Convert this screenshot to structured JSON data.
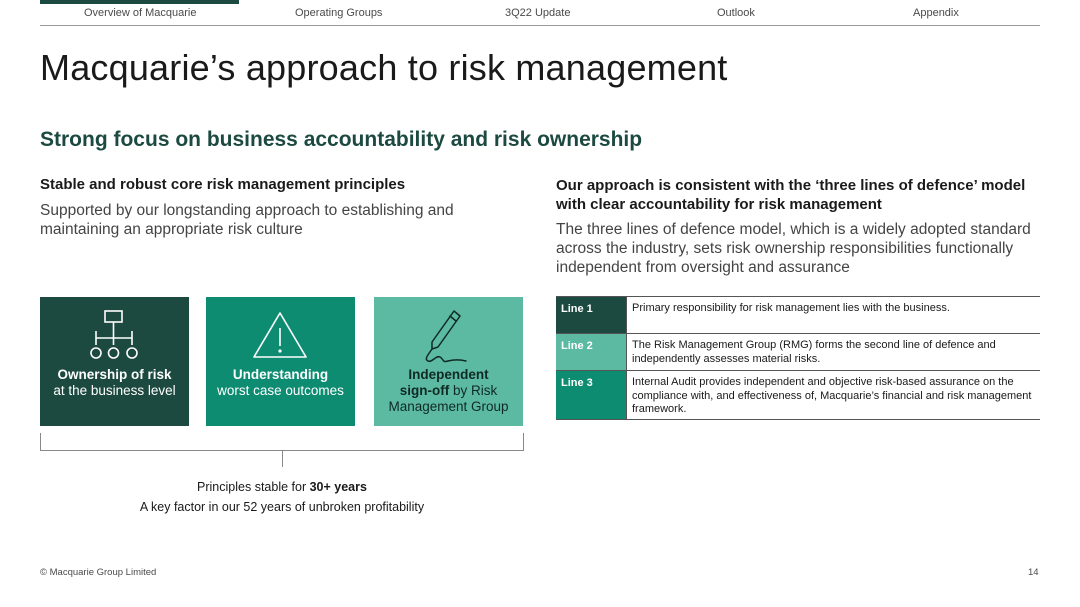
{
  "nav": {
    "items": [
      "Overview of Macquarie",
      "Operating Groups",
      "3Q22 Update",
      "Outlook",
      "Appendix"
    ],
    "active_index": 0
  },
  "title": "Macquarie’s approach to risk management",
  "subtitle": "Strong focus on business accountability and risk ownership",
  "left": {
    "heading": "Stable and robust core risk management principles",
    "body": "Supported by our longstanding approach to establishing and maintaining an appropriate risk culture"
  },
  "right": {
    "heading": "Our approach is consistent with the ‘three lines of defence’ model with clear accountability for risk management",
    "body": "The three lines of defence model, which is a widely adopted standard across the industry, sets risk ownership responsibilities functionally independent from oversight and assurance"
  },
  "principles": [
    {
      "icon": "org-chart-icon",
      "bold": "Ownership of risk",
      "rest": "at the business level",
      "color": "#1d4a40"
    },
    {
      "icon": "warning-triangle-icon",
      "bold": "Understanding",
      "rest": "worst case outcomes",
      "color": "#0e8c72"
    },
    {
      "icon": "pen-signature-icon",
      "bold_line1": "Independent",
      "bold_line2": "sign-off",
      "rest_line2": " by Risk",
      "rest_line3": "Management Group",
      "color": "#5cbaa3"
    }
  ],
  "summary": {
    "line1_prefix": "Principles stable for ",
    "line1_bold": "30+ years",
    "line2": "A key factor in our 52 years of unbroken profitability"
  },
  "lines_of_defence": [
    {
      "label": "Line 1",
      "text": "Primary responsibility for risk management lies with the business.",
      "color": "#1d4a40"
    },
    {
      "label": "Line 2",
      "text": "The Risk Management Group (RMG) forms the second line of defence and independently assesses material risks.",
      "color": "#5cbaa3"
    },
    {
      "label": "Line 3",
      "text": "Internal Audit provides independent and objective risk-based assurance on the compliance with, and effectiveness of, Macquarie’s financial and risk management framework.",
      "color": "#0e8c72"
    }
  ],
  "footer": {
    "copyright": "© Macquarie Group Limited",
    "page_number": "14"
  }
}
